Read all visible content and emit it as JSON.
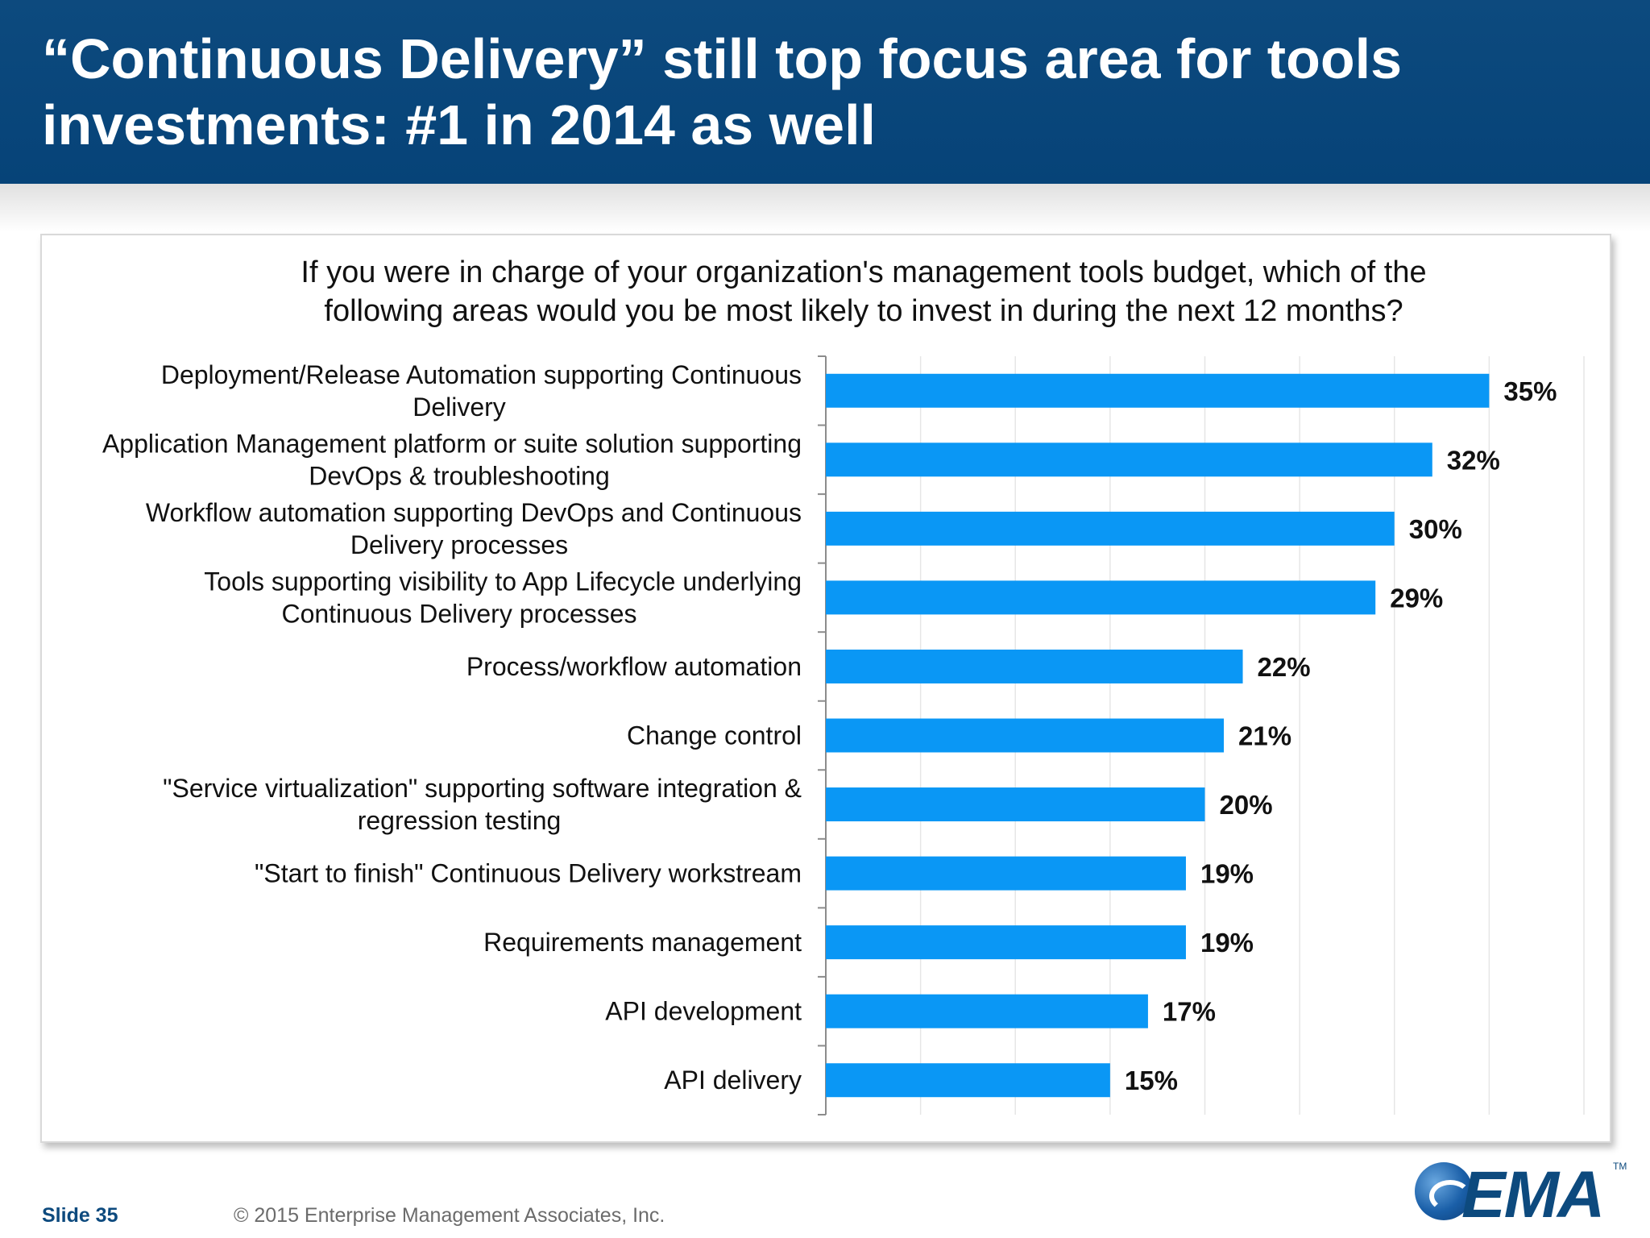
{
  "header": {
    "title_line1": "“Continuous Delivery” still top focus area for tools",
    "title_line2": "investments: #1 in 2014 as well"
  },
  "chart_data": {
    "type": "bar",
    "orientation": "horizontal",
    "title_line1": "If you were in charge of your organization's management tools budget, which of the",
    "title_line2": "following areas would you be most likely to invest in during the next 12 months?",
    "categories": [
      [
        "Deployment/Release Automation supporting Continuous",
        "Delivery"
      ],
      [
        "Application Management platform or suite solution supporting",
        "DevOps & troubleshooting"
      ],
      [
        "Workflow automation supporting DevOps and Continuous",
        "Delivery processes"
      ],
      [
        "Tools supporting visibility to App Lifecycle underlying",
        "Continuous Delivery processes"
      ],
      [
        "Process/workflow automation"
      ],
      [
        "Change control"
      ],
      [
        "\"Service virtualization\" supporting software integration &",
        "regression testing"
      ],
      [
        "\"Start to finish\" Continuous Delivery workstream"
      ],
      [
        "Requirements management"
      ],
      [
        "API development"
      ],
      [
        "API delivery"
      ]
    ],
    "values": [
      35,
      32,
      30,
      29,
      22,
      21,
      20,
      19,
      19,
      17,
      15
    ],
    "value_labels": [
      "35%",
      "32%",
      "30%",
      "29%",
      "22%",
      "21%",
      "20%",
      "19%",
      "19%",
      "17%",
      "15%"
    ],
    "xlim": [
      0,
      40
    ],
    "grid": true,
    "bar_color": "#0a97f5"
  },
  "footer": {
    "slide": "Slide 35",
    "copyright": "© 2015 Enterprise Management Associates, Inc.",
    "logo_text": "EMA",
    "logo_tm": "TM"
  }
}
